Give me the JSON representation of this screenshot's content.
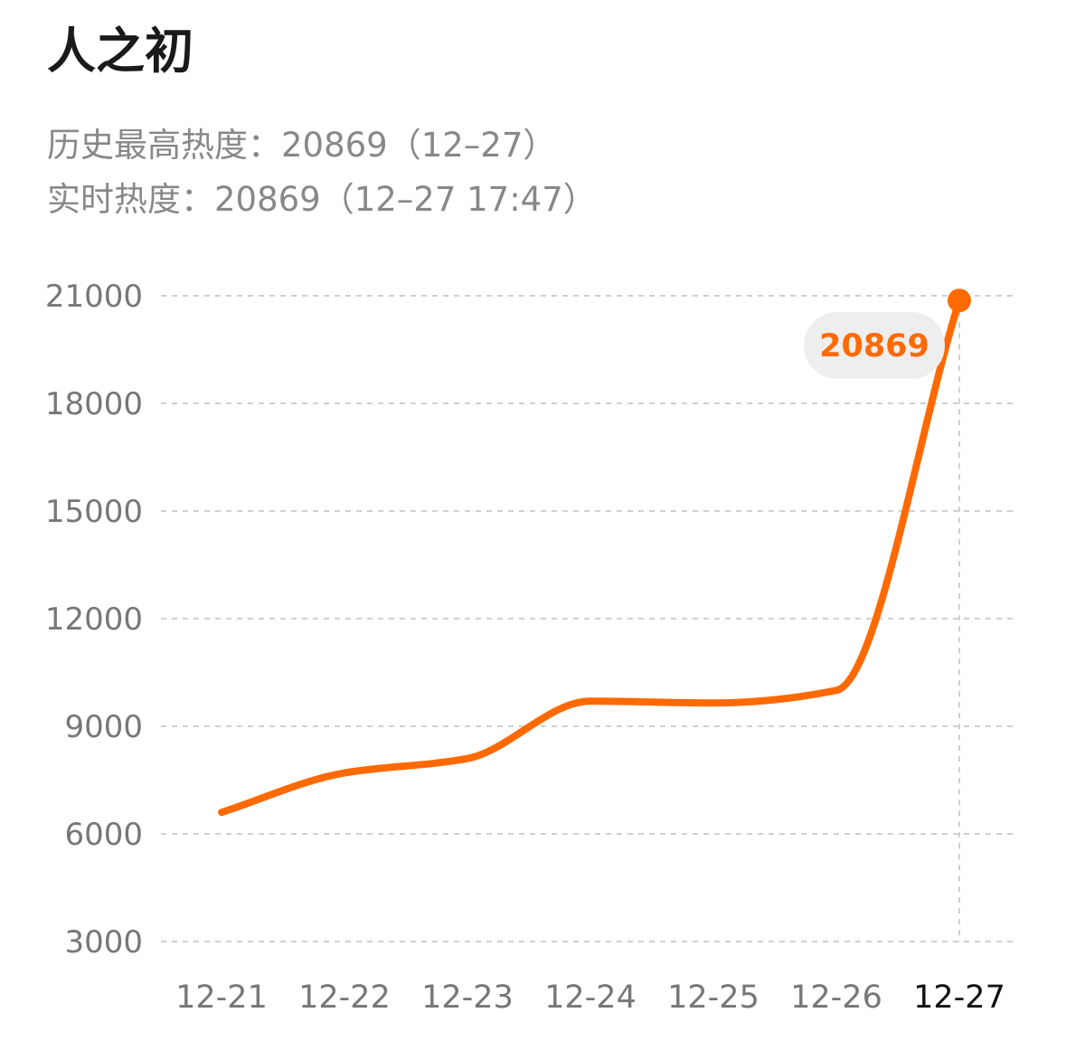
{
  "header": {
    "title": "人之初",
    "peak_text": "历史最高热度：20869（12–27）",
    "live_text": "实时热度：20869（12–27 17:47）"
  },
  "colors": {
    "line": "#ff6a00",
    "grid": "#d0d0d0",
    "bubble_bg": "#eeeeee"
  },
  "chart_data": {
    "type": "line",
    "title": "",
    "xlabel": "",
    "ylabel": "",
    "categories": [
      "12-21",
      "12-22",
      "12-23",
      "12-24",
      "12-25",
      "12-26",
      "12-27"
    ],
    "series": [
      {
        "values": [
          6600,
          7700,
          8100,
          9700,
          9650,
          10000,
          20869
        ]
      }
    ],
    "y_ticks": [
      "3000",
      "6000",
      "9000",
      "12000",
      "15000",
      "18000",
      "21000"
    ],
    "ylim": [
      3000,
      21000
    ],
    "grid": true,
    "highlight": {
      "category": "12-27",
      "label": "20869"
    },
    "legend": "none"
  }
}
